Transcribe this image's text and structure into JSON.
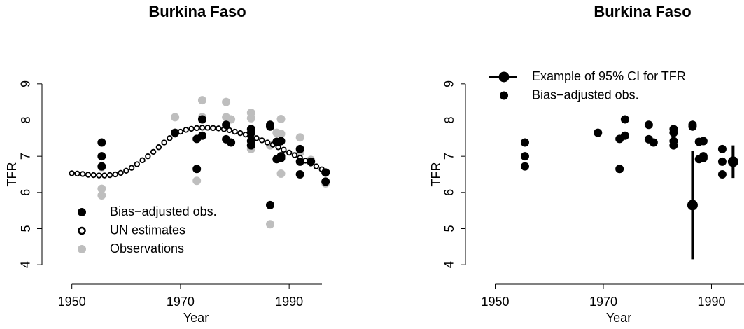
{
  "chart_data": [
    {
      "type": "scatter",
      "title": "Burkina Faso",
      "x_label": "Year",
      "y_label": "TFR",
      "xlim": [
        1944.5,
        1999
      ],
      "ylim": [
        3.5,
        9.5
      ],
      "xticks": [
        1950,
        1970,
        1990
      ],
      "yticks": [
        4,
        5,
        6,
        7,
        8,
        9
      ],
      "legend": "bottom-left",
      "series": [
        {
          "name": "Bias−adjusted obs.",
          "color": "#000000",
          "marker": "filled",
          "x": [
            1955.5,
            1955.5,
            1955.5,
            1969,
            1973,
            1973,
            1974,
            1974,
            1978.4,
            1978.4,
            1979.3,
            1983,
            1983,
            1983,
            1983,
            1986.5,
            1986.5,
            1986.5,
            1987.7,
            1987.7,
            1988.5,
            1988.5,
            1988.5,
            1992,
            1992,
            1992,
            1994,
            1996.7,
            1996.7
          ],
          "values": [
            7.38,
            7.0,
            6.72,
            7.65,
            7.48,
            6.65,
            8.02,
            7.57,
            7.87,
            7.47,
            7.38,
            7.75,
            7.65,
            7.42,
            7.3,
            7.87,
            7.82,
            5.65,
            7.4,
            6.92,
            7.42,
            7.0,
            6.95,
            7.2,
            6.85,
            6.5,
            6.85,
            6.55,
            6.3
          ]
        },
        {
          "name": "UN estimates",
          "color": "#000000",
          "marker": "open",
          "x": [
            1950,
            1951,
            1952,
            1953,
            1954,
            1955,
            1956,
            1957,
            1958,
            1959,
            1960,
            1961,
            1962,
            1963,
            1964,
            1965,
            1966,
            1967,
            1968,
            1969,
            1970,
            1971,
            1972,
            1973,
            1974,
            1975,
            1976,
            1977,
            1978,
            1979,
            1980,
            1981,
            1982,
            1983,
            1984,
            1985,
            1986,
            1987,
            1988,
            1989,
            1990,
            1991,
            1992,
            1993,
            1994,
            1995,
            1996,
            1997
          ],
          "values": [
            6.53,
            6.52,
            6.51,
            6.49,
            6.48,
            6.47,
            6.47,
            6.48,
            6.5,
            6.54,
            6.6,
            6.68,
            6.78,
            6.89,
            7.0,
            7.12,
            7.25,
            7.38,
            7.5,
            7.6,
            7.68,
            7.73,
            7.76,
            7.78,
            7.79,
            7.79,
            7.78,
            7.77,
            7.75,
            7.72,
            7.68,
            7.64,
            7.6,
            7.55,
            7.5,
            7.44,
            7.38,
            7.32,
            7.25,
            7.18,
            7.1,
            7.03,
            6.96,
            6.88,
            6.8,
            6.72,
            6.64,
            6.56
          ]
        },
        {
          "name": "Observations",
          "color": "#bebebe",
          "marker": "filled",
          "x": [
            1955.5,
            1955.5,
            1955.5,
            1969,
            1973,
            1974,
            1974,
            1978.4,
            1978.4,
            1979.3,
            1983,
            1983,
            1983,
            1983,
            1986.5,
            1986.5,
            1987.7,
            1988.5,
            1988.5,
            1988.5,
            1988.5,
            1992,
            1992,
            1994,
            1996.7
          ],
          "values": [
            6.7,
            6.1,
            5.92,
            8.08,
            6.32,
            8.55,
            8.08,
            8.5,
            8.08,
            8.02,
            8.2,
            8.05,
            7.55,
            7.2,
            7.3,
            5.12,
            7.65,
            7.62,
            8.03,
            6.52,
            7.0,
            7.52,
            7.1,
            6.9,
            6.25
          ]
        }
      ]
    },
    {
      "type": "scatter",
      "title": "Burkina Faso",
      "x_label": "Year",
      "y_label": "TFR",
      "xlim": [
        1944.5,
        1999
      ],
      "ylim": [
        3.5,
        9.5
      ],
      "xticks": [
        1950,
        1970,
        1990
      ],
      "yticks": [
        4,
        5,
        6,
        7,
        8,
        9
      ],
      "legend": "top-left",
      "series": [
        {
          "name": "Example of 95% CI for TFR",
          "color": "#000000",
          "marker": "errorbar",
          "x": [
            1986.5,
            1994
          ],
          "values": [
            5.65,
            6.85
          ],
          "lower": [
            4.15,
            6.4
          ],
          "upper": [
            7.15,
            7.3
          ]
        },
        {
          "name": "Bias−adjusted obs.",
          "color": "#000000",
          "marker": "filled",
          "x": [
            1955.5,
            1955.5,
            1955.5,
            1969,
            1973,
            1973,
            1974,
            1974,
            1978.4,
            1978.4,
            1979.3,
            1983,
            1983,
            1983,
            1983,
            1986.5,
            1986.5,
            1986.5,
            1987.7,
            1987.7,
            1988.5,
            1988.5,
            1988.5,
            1992,
            1992,
            1992,
            1994
          ],
          "values": [
            7.38,
            7.0,
            6.72,
            7.65,
            7.48,
            6.65,
            8.02,
            7.57,
            7.87,
            7.47,
            7.38,
            7.75,
            7.65,
            7.42,
            7.3,
            7.87,
            7.82,
            5.65,
            7.4,
            6.92,
            7.42,
            7.0,
            6.95,
            7.2,
            6.85,
            6.5,
            6.85
          ]
        }
      ]
    }
  ]
}
